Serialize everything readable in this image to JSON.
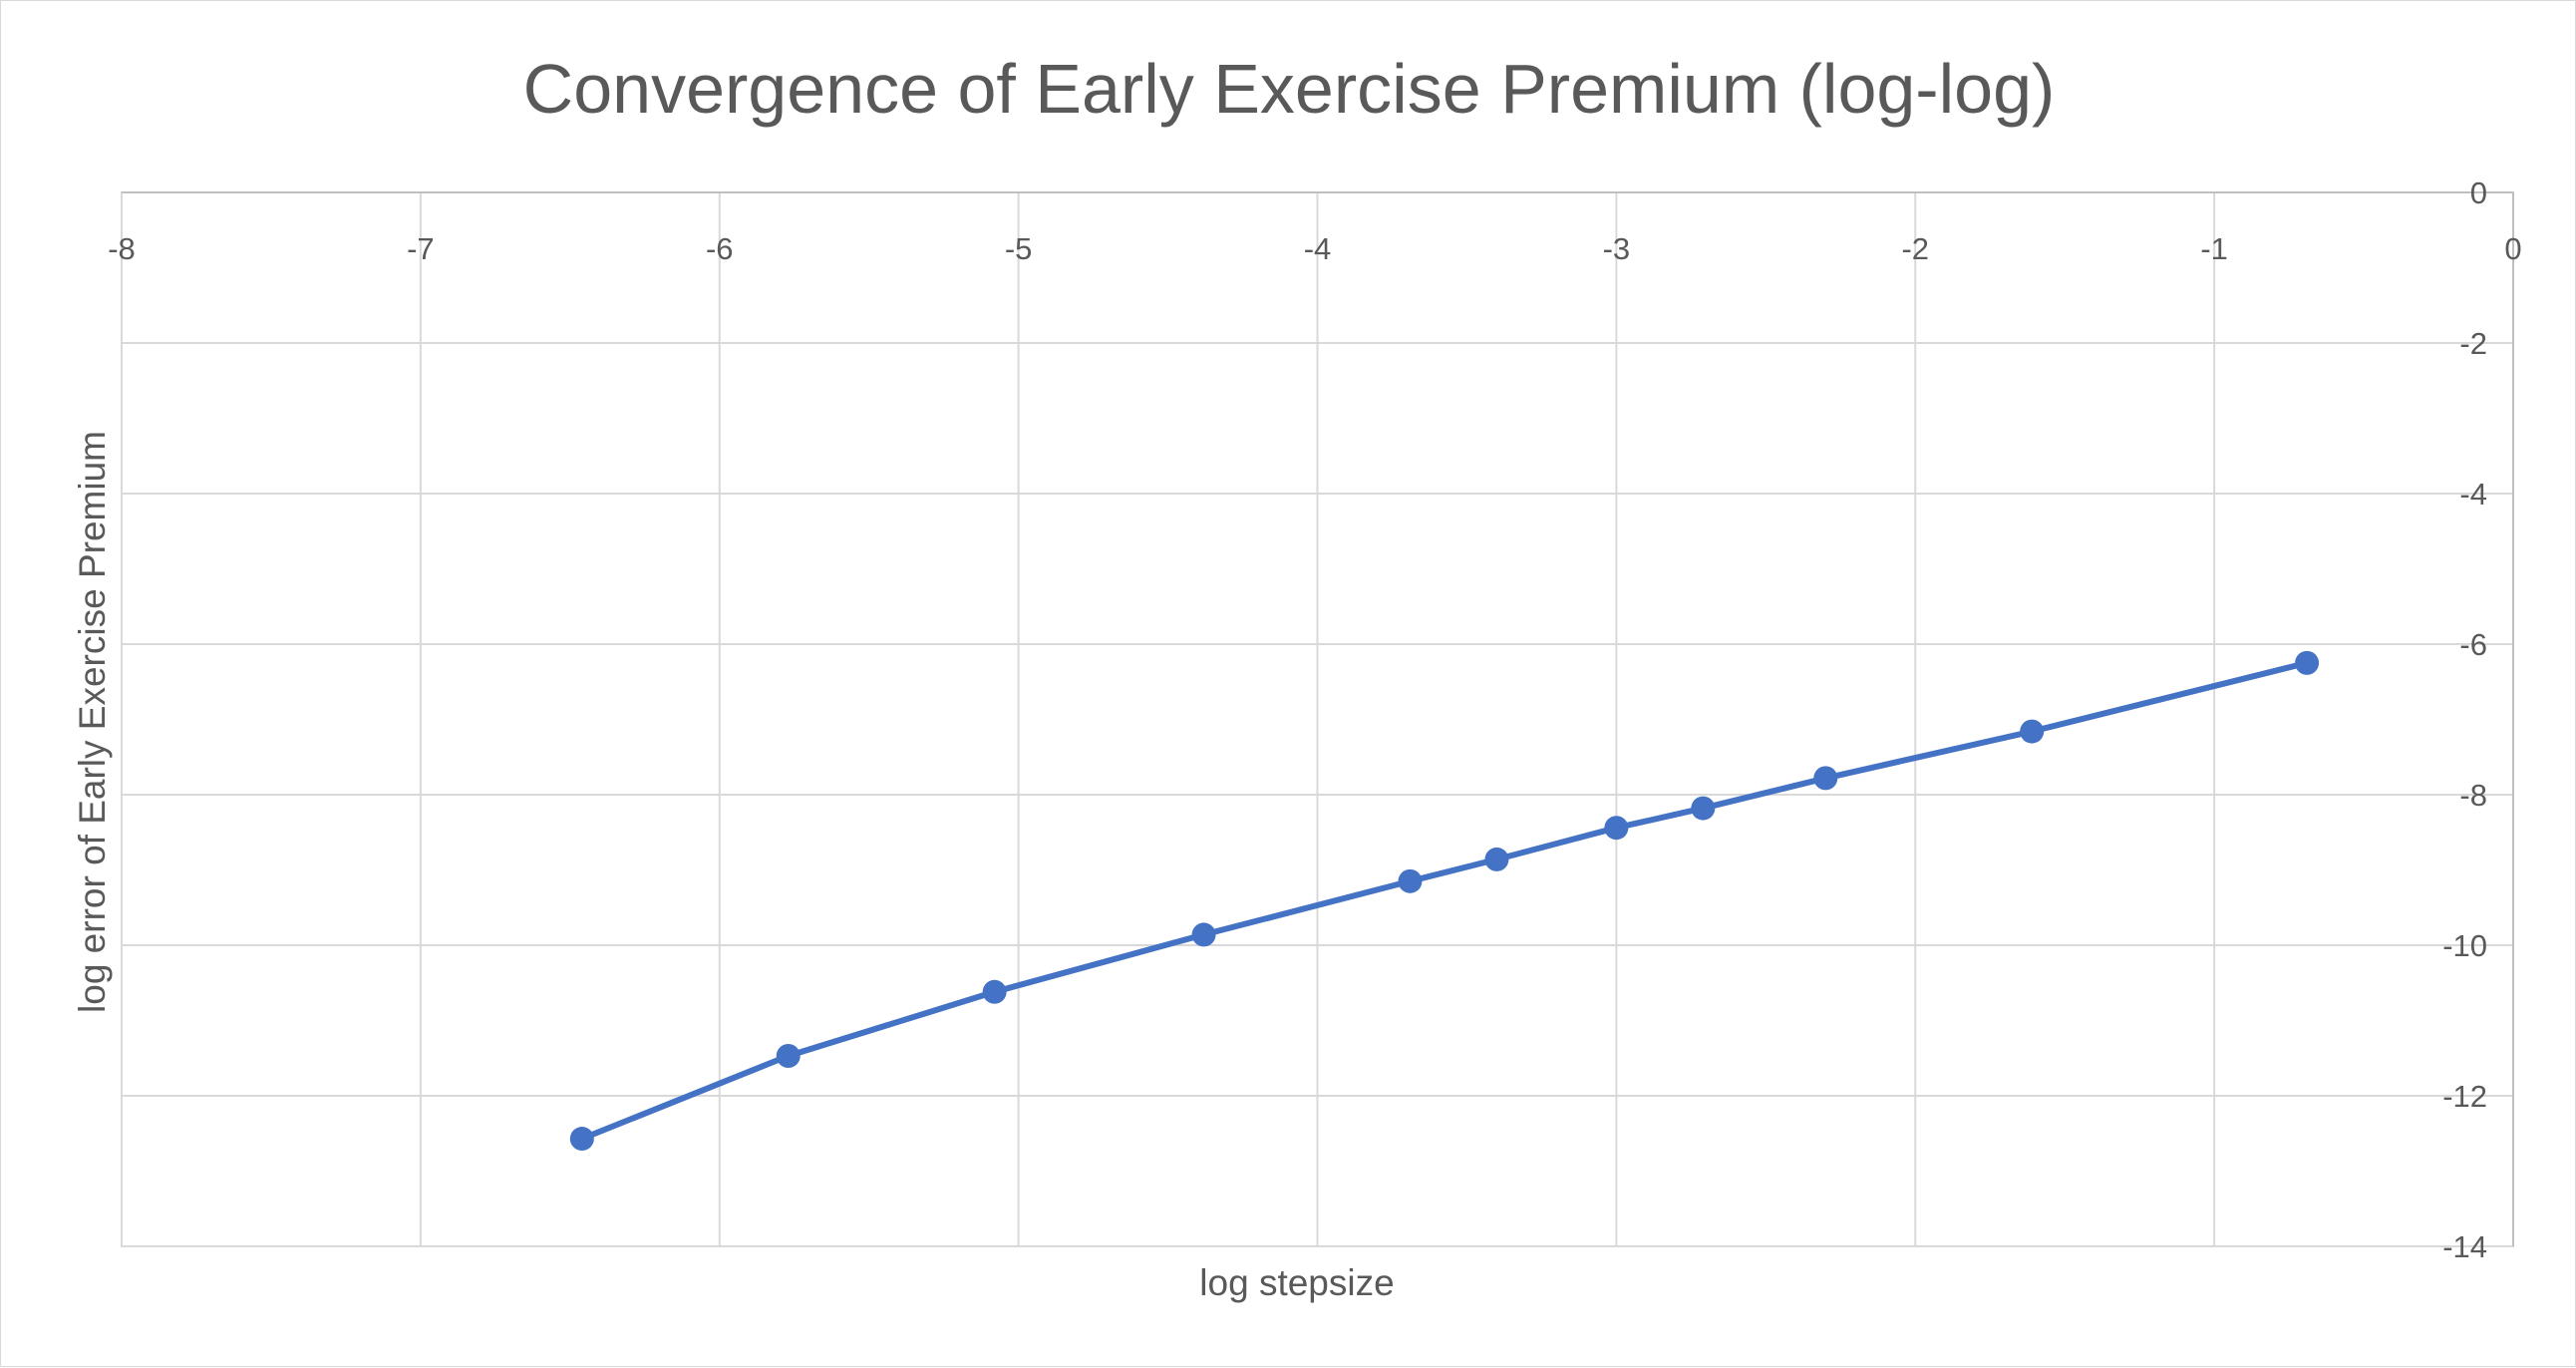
{
  "chart_data": {
    "type": "line",
    "title": "Convergence of Early Exercise Premium (log-log)",
    "xlabel": "log stepsize",
    "ylabel": "log error of Early Exercise Premium",
    "xlim": [
      -8,
      0
    ],
    "ylim": [
      -14,
      0
    ],
    "x_ticks": [
      "-8",
      "-7",
      "-6",
      "-5",
      "-4",
      "-3",
      "-2",
      "-1",
      "0"
    ],
    "y_ticks": [
      "0",
      "-2",
      "-4",
      "-6",
      "-8",
      "-10",
      "-12",
      "-14"
    ],
    "x_axis_position": "top",
    "y_axis_position": "right",
    "grid": true,
    "legend": "none",
    "series": [
      {
        "color": "#4472c4",
        "marker": "circle",
        "points": [
          {
            "x": -6.46,
            "y": -12.57
          },
          {
            "x": -5.77,
            "y": -11.47
          },
          {
            "x": -5.08,
            "y": -10.62
          },
          {
            "x": -4.38,
            "y": -9.86
          },
          {
            "x": -3.69,
            "y": -9.15
          },
          {
            "x": -3.4,
            "y": -8.86
          },
          {
            "x": -3.0,
            "y": -8.44
          },
          {
            "x": -2.71,
            "y": -8.18
          },
          {
            "x": -2.3,
            "y": -7.78
          },
          {
            "x": -1.61,
            "y": -7.16
          },
          {
            "x": -0.69,
            "y": -6.25
          }
        ]
      }
    ]
  }
}
